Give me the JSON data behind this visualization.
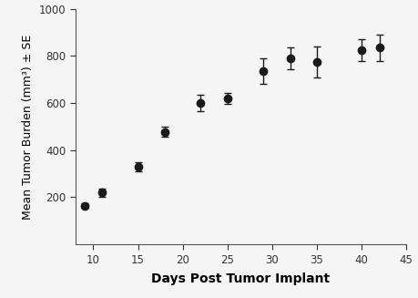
{
  "x": [
    9,
    11,
    15,
    18,
    22,
    25,
    29,
    32,
    35,
    40,
    42
  ],
  "y": [
    165,
    220,
    330,
    478,
    600,
    620,
    735,
    790,
    775,
    825,
    835
  ],
  "se": [
    8,
    18,
    18,
    22,
    35,
    25,
    55,
    45,
    65,
    45,
    55
  ],
  "xlabel": "Days Post Tumor Implant",
  "ylabel": "Mean Tumor Burden (mm³) ± SE",
  "xlim": [
    8,
    45
  ],
  "ylim": [
    0,
    1000
  ],
  "xticks": [
    10,
    15,
    20,
    25,
    30,
    35,
    40,
    45
  ],
  "yticks": [
    200,
    400,
    600,
    800,
    1000
  ],
  "line_color": "#1a1a1a",
  "marker_color": "#1a1a1a",
  "background_color": "#f5f5f5",
  "capsize": 3,
  "linewidth": 1.3,
  "markersize": 6
}
